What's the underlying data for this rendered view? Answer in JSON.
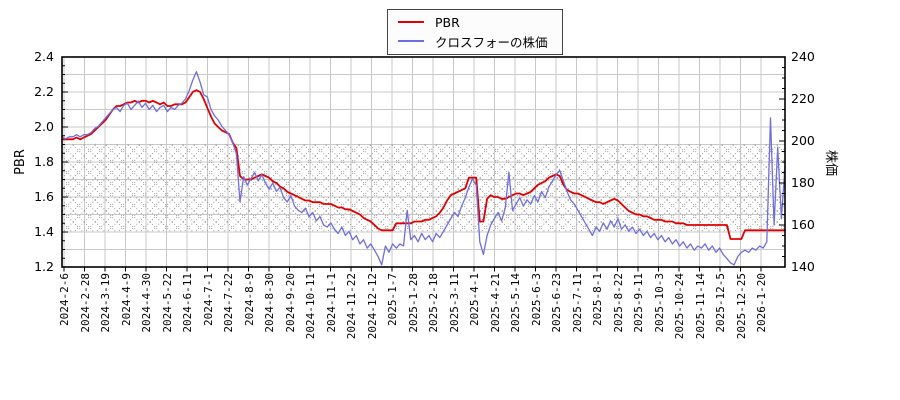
{
  "legend": {
    "items": [
      {
        "label": "PBR"
      },
      {
        "label": "クロスフォーの株価"
      }
    ]
  },
  "colors": {
    "grid": "#c8c8c8",
    "hatch": "#999999",
    "axis": "#000000",
    "pbr_line": "#dd0000",
    "price_line": "#6e6edd"
  },
  "chart_data": {
    "type": "line",
    "title": "",
    "legend_position": "top-center",
    "grid": true,
    "x_tick_labels": [
      "2024-2-6",
      "2024-2-28",
      "2024-3-19",
      "2024-4-9",
      "2024-4-30",
      "2024-5-22",
      "2024-6-11",
      "2024-7-1",
      "2024-7-22",
      "2024-8-9",
      "2024-8-30",
      "2024-9-20",
      "2024-10-11",
      "2024-11-1",
      "2024-11-22",
      "2024-12-12",
      "2025-1-7",
      "2025-1-28",
      "2025-2-18",
      "2025-3-11",
      "2025-4-1",
      "2025-4-21",
      "2025-5-14",
      "2025-6-3",
      "2025-6-23",
      "2025-7-11",
      "2025-8-1",
      "2025-8-22",
      "2025-9-11",
      "2025-10-3",
      "2025-10-24",
      "2025-11-14",
      "2025-12-5",
      "2025-12-25",
      "2026-1-20"
    ],
    "left_axis": {
      "title": "PBR",
      "min": 1.2,
      "max": 2.4,
      "grid_step": 0.1,
      "minor_tick_step": 0.05,
      "label_step": 0.2,
      "tick_labels": [
        "2.4",
        "2.2",
        "2.0",
        "1.8",
        "1.6",
        "1.4",
        "1.2"
      ]
    },
    "right_axis": {
      "title": "株価",
      "min": 140,
      "max": 240,
      "minor_tick_step": 5,
      "label_step": 20,
      "tick_labels": [
        "240",
        "220",
        "200",
        "180",
        "160",
        "140"
      ]
    },
    "band": {
      "axis": "left",
      "from": 1.4,
      "to": 1.9,
      "style": "dotted-crosshatch"
    },
    "sampling": "uniform-x",
    "series": [
      {
        "name": "PBR",
        "axis": "left",
        "color": "#dd0000",
        "width": 1.8,
        "values": [
          1.93,
          1.93,
          1.93,
          1.93,
          1.94,
          1.93,
          1.94,
          1.95,
          1.96,
          1.98,
          2.0,
          2.02,
          2.04,
          2.07,
          2.1,
          2.12,
          2.12,
          2.13,
          2.14,
          2.14,
          2.15,
          2.14,
          2.15,
          2.15,
          2.14,
          2.15,
          2.14,
          2.13,
          2.14,
          2.12,
          2.12,
          2.13,
          2.13,
          2.13,
          2.14,
          2.17,
          2.2,
          2.21,
          2.2,
          2.16,
          2.11,
          2.06,
          2.02,
          2.0,
          1.98,
          1.97,
          1.96,
          1.91,
          1.88,
          1.72,
          1.7,
          1.7,
          1.7,
          1.71,
          1.72,
          1.73,
          1.72,
          1.71,
          1.69,
          1.68,
          1.66,
          1.65,
          1.63,
          1.62,
          1.61,
          1.6,
          1.59,
          1.58,
          1.58,
          1.57,
          1.57,
          1.57,
          1.56,
          1.56,
          1.56,
          1.55,
          1.54,
          1.54,
          1.53,
          1.53,
          1.52,
          1.51,
          1.5,
          1.48,
          1.47,
          1.46,
          1.44,
          1.42,
          1.41,
          1.41,
          1.41,
          1.41,
          1.45,
          1.45,
          1.45,
          1.45,
          1.45,
          1.46,
          1.46,
          1.46,
          1.47,
          1.47,
          1.48,
          1.49,
          1.51,
          1.54,
          1.58,
          1.61,
          1.62,
          1.63,
          1.64,
          1.65,
          1.71,
          1.71,
          1.71,
          1.46,
          1.46,
          1.59,
          1.61,
          1.6,
          1.6,
          1.59,
          1.59,
          1.6,
          1.61,
          1.62,
          1.62,
          1.61,
          1.62,
          1.63,
          1.65,
          1.67,
          1.68,
          1.69,
          1.71,
          1.72,
          1.73,
          1.72,
          1.67,
          1.64,
          1.63,
          1.62,
          1.62,
          1.61,
          1.6,
          1.59,
          1.58,
          1.57,
          1.57,
          1.56,
          1.57,
          1.58,
          1.59,
          1.58,
          1.56,
          1.54,
          1.52,
          1.51,
          1.5,
          1.5,
          1.49,
          1.49,
          1.48,
          1.47,
          1.47,
          1.47,
          1.46,
          1.46,
          1.46,
          1.45,
          1.45,
          1.45,
          1.44,
          1.44,
          1.44,
          1.44,
          1.44,
          1.44,
          1.44,
          1.44,
          1.44,
          1.44,
          1.44,
          1.44,
          1.36,
          1.36,
          1.36,
          1.36,
          1.41,
          1.41,
          1.41,
          1.41,
          1.41,
          1.41,
          1.41,
          1.41,
          1.41,
          1.41,
          1.41,
          1.41
        ]
      },
      {
        "name": "クロスフォーの株価",
        "axis": "right",
        "color": "#6e6edd",
        "width": 1.3,
        "values": [
          202,
          201,
          202,
          202,
          203,
          202,
          203,
          203,
          204,
          206,
          207,
          209,
          211,
          213,
          215,
          216,
          214,
          217,
          218,
          215,
          217,
          219,
          216,
          218,
          215,
          217,
          214,
          216,
          217,
          214,
          216,
          215,
          217,
          218,
          220,
          224,
          229,
          233,
          228,
          222,
          221,
          215,
          212,
          210,
          207,
          205,
          203,
          199,
          194,
          171,
          183,
          179,
          182,
          185,
          181,
          184,
          180,
          177,
          180,
          176,
          178,
          173,
          171,
          174,
          169,
          167,
          166,
          168,
          164,
          166,
          162,
          164,
          160,
          159,
          161,
          158,
          156,
          159,
          155,
          157,
          153,
          155,
          151,
          153,
          149,
          151,
          148,
          145,
          141,
          150,
          147,
          151,
          149,
          151,
          150,
          167,
          153,
          155,
          152,
          156,
          153,
          155,
          152,
          156,
          154,
          157,
          160,
          163,
          166,
          164,
          169,
          173,
          178,
          182,
          179,
          152,
          146,
          155,
          160,
          163,
          166,
          162,
          168,
          185,
          167,
          170,
          173,
          169,
          172,
          170,
          174,
          171,
          176,
          173,
          178,
          181,
          184,
          186,
          181,
          176,
          172,
          170,
          167,
          164,
          161,
          158,
          155,
          159,
          157,
          161,
          158,
          162,
          159,
          163,
          158,
          160,
          157,
          159,
          156,
          158,
          155,
          157,
          154,
          156,
          153,
          155,
          152,
          154,
          151,
          153,
          150,
          152,
          149,
          151,
          148,
          150,
          149,
          151,
          148,
          150,
          147,
          149,
          146,
          144,
          142,
          141,
          145,
          147,
          148,
          147,
          149,
          148,
          150,
          149,
          152,
          211,
          160,
          197,
          163,
          188
        ]
      }
    ]
  }
}
